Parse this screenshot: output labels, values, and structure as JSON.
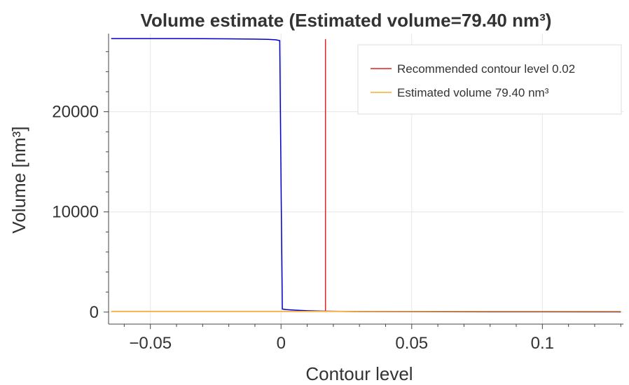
{
  "chart_data": {
    "type": "line",
    "title": "Volume estimate (Estimated volume=79.40 nm³)",
    "xlabel": "Contour level",
    "ylabel": "Volume [nm³]",
    "xlim": [
      -0.066,
      0.131
    ],
    "ylim": [
      -1200,
      27800
    ],
    "x_ticks": [
      -0.05,
      0,
      0.05,
      0.1
    ],
    "x_tick_labels": [
      "−0.05",
      "0",
      "0.05",
      "0.1"
    ],
    "y_ticks": [
      0,
      10000,
      20000
    ],
    "y_tick_labels": [
      "0",
      "10000",
      "20000"
    ],
    "grid": true,
    "legend_position": "top-right",
    "series": [
      {
        "color": "#0000cc",
        "x": [
          -0.065,
          -0.05,
          -0.04,
          -0.03,
          -0.02,
          -0.01,
          -0.005,
          -0.002,
          -0.0005,
          0.0,
          0.0005,
          0.002,
          0.005,
          0.01,
          0.015,
          0.02,
          0.03,
          0.05,
          0.08,
          0.1,
          0.13
        ],
        "y": [
          27300,
          27300,
          27300,
          27290,
          27280,
          27250,
          27220,
          27180,
          27100,
          13000,
          300,
          250,
          200,
          140,
          100,
          80,
          60,
          45,
          35,
          30,
          25
        ]
      },
      {
        "name": "Recommended contour level 0.02",
        "color": "#dd2222",
        "x": [
          0.017,
          0.017
        ],
        "y": [
          50,
          27250
        ]
      },
      {
        "name": "Estimated volume 79.40 nm³",
        "color": "#ffaa22",
        "x": [
          -0.065,
          0.13
        ],
        "y": [
          79.4,
          79.4
        ]
      }
    ]
  }
}
